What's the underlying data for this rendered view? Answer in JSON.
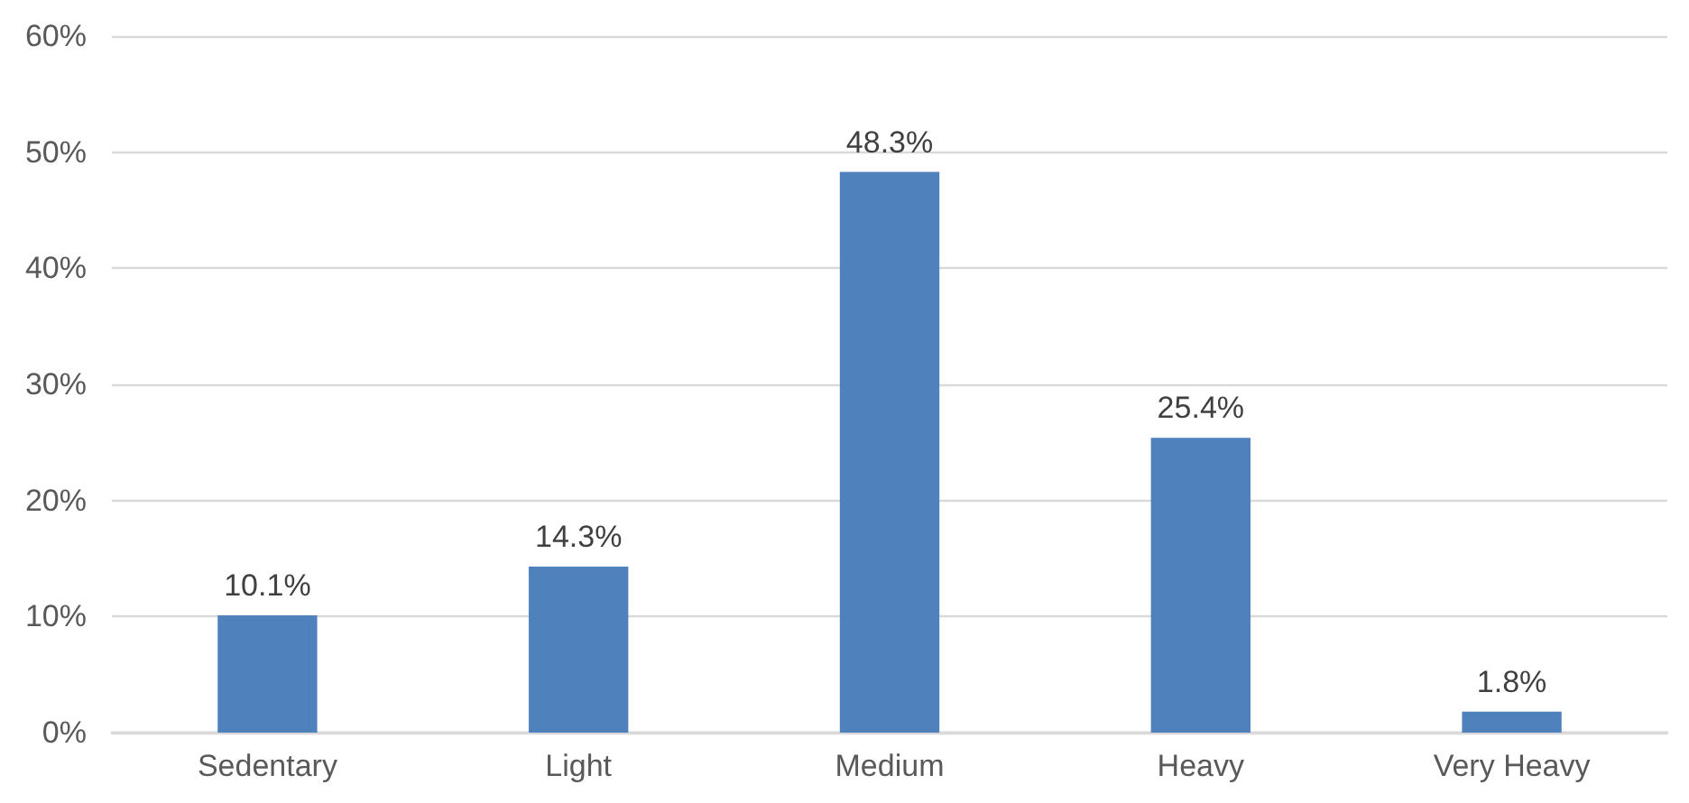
{
  "chart_data": {
    "type": "bar",
    "categories": [
      "Sedentary",
      "Light",
      "Medium",
      "Heavy",
      "Very Heavy"
    ],
    "values": [
      10.1,
      14.3,
      48.3,
      25.4,
      1.8
    ],
    "value_labels": [
      "10.1%",
      "14.3%",
      "48.3%",
      "25.4%",
      "1.8%"
    ],
    "color": "#4f81bd",
    "ylim": [
      0,
      60
    ],
    "yticks": [
      {
        "value": 0,
        "label": "0%"
      },
      {
        "value": 10,
        "label": "10%"
      },
      {
        "value": 20,
        "label": "20%"
      },
      {
        "value": 30,
        "label": "30%"
      },
      {
        "value": 40,
        "label": "40%"
      },
      {
        "value": 50,
        "label": "50%"
      },
      {
        "value": 60,
        "label": "60%"
      }
    ],
    "grid": "y"
  }
}
